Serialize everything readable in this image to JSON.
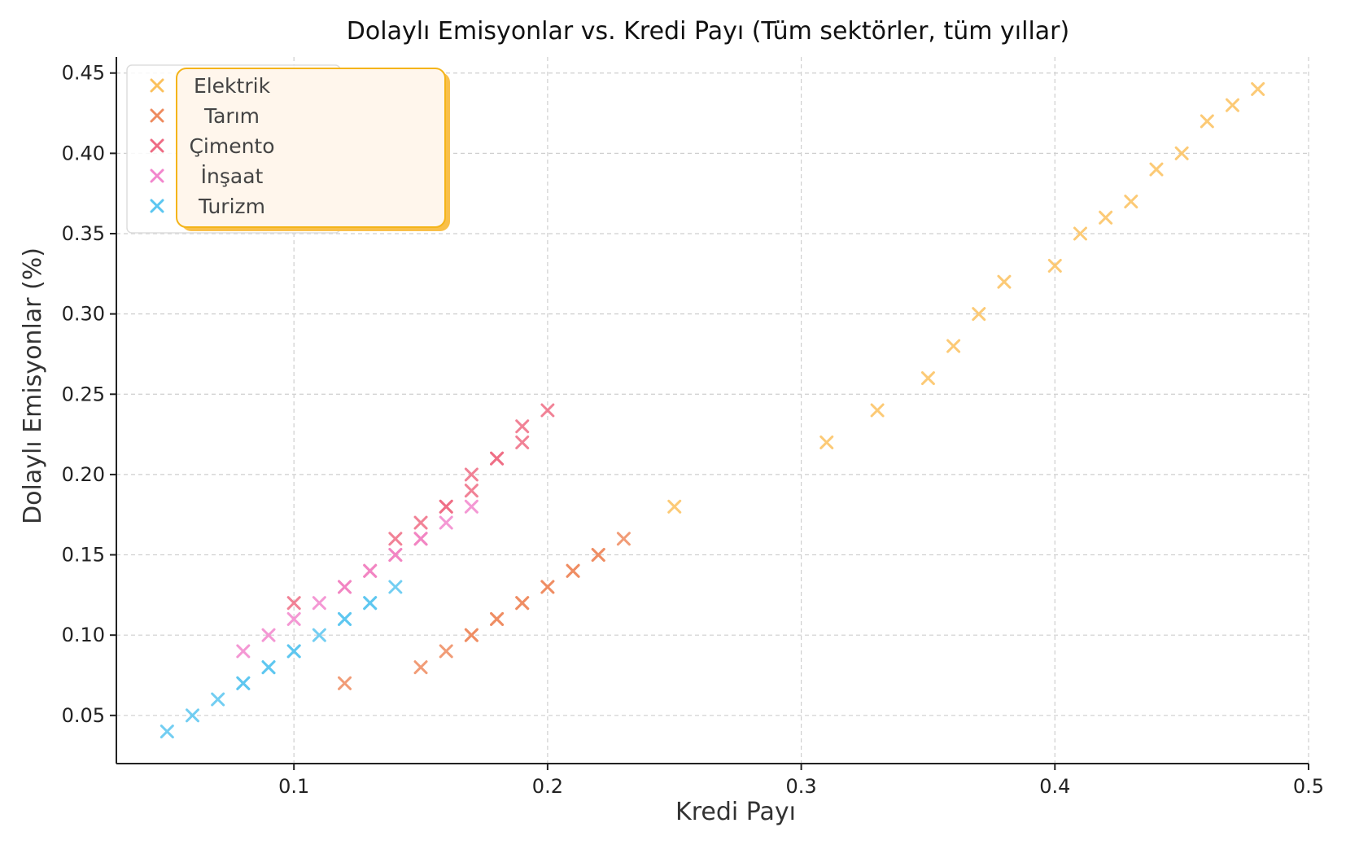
{
  "chart_data": {
    "type": "scatter",
    "title": "Dolaylı Emisyonlar vs. Kredi Payı (Tüm sektörler, tüm yıllar)",
    "xlabel": "Kredi Payı",
    "ylabel": "Dolaylı Emisyonlar (%)",
    "xlim": [
      0.03,
      0.5
    ],
    "ylim": [
      0.02,
      0.46
    ],
    "xticks": [
      0.1,
      0.2,
      0.3,
      0.4,
      0.5
    ],
    "xtick_labels": [
      "0.1",
      "0.2",
      "0.3",
      "0.4",
      "0.5"
    ],
    "yticks": [
      0.05,
      0.1,
      0.15,
      0.2,
      0.25,
      0.3,
      0.35,
      0.4,
      0.45
    ],
    "ytick_labels": [
      "0.05",
      "0.10",
      "0.15",
      "0.20",
      "0.25",
      "0.30",
      "0.35",
      "0.40",
      "0.45"
    ],
    "grid": true,
    "legend_position": "top-left",
    "marker": "x",
    "series": [
      {
        "name": "Elektrik",
        "color": "#fbc15e",
        "x": [
          0.25,
          0.31,
          0.33,
          0.35,
          0.36,
          0.37,
          0.38,
          0.4,
          0.41,
          0.42,
          0.43,
          0.44,
          0.45,
          0.46,
          0.47,
          0.48
        ],
        "y": [
          0.18,
          0.22,
          0.24,
          0.26,
          0.28,
          0.3,
          0.32,
          0.33,
          0.35,
          0.36,
          0.37,
          0.39,
          0.4,
          0.42,
          0.43,
          0.44
        ]
      },
      {
        "name": "Tarım",
        "color": "#ee8b5f",
        "x": [
          0.12,
          0.15,
          0.16,
          0.17,
          0.17,
          0.18,
          0.18,
          0.19,
          0.19,
          0.2,
          0.2,
          0.21,
          0.21,
          0.22,
          0.22,
          0.23
        ],
        "y": [
          0.07,
          0.08,
          0.09,
          0.1,
          0.1,
          0.11,
          0.11,
          0.12,
          0.12,
          0.13,
          0.13,
          0.14,
          0.14,
          0.15,
          0.15,
          0.16
        ]
      },
      {
        "name": "Çimento",
        "color": "#ee6c84",
        "x": [
          0.1,
          0.12,
          0.13,
          0.14,
          0.14,
          0.15,
          0.15,
          0.16,
          0.16,
          0.17,
          0.17,
          0.18,
          0.18,
          0.19,
          0.19,
          0.2
        ],
        "y": [
          0.12,
          0.13,
          0.14,
          0.15,
          0.16,
          0.16,
          0.17,
          0.18,
          0.18,
          0.19,
          0.2,
          0.21,
          0.21,
          0.22,
          0.23,
          0.24
        ]
      },
      {
        "name": "İnşaat",
        "color": "#f286cd",
        "x": [
          0.08,
          0.09,
          0.1,
          0.11,
          0.12,
          0.13,
          0.14,
          0.15,
          0.16,
          0.17
        ],
        "y": [
          0.09,
          0.1,
          0.11,
          0.12,
          0.13,
          0.14,
          0.15,
          0.16,
          0.17,
          0.18
        ]
      },
      {
        "name": "Turizm",
        "color": "#5bc6f0",
        "x": [
          0.05,
          0.06,
          0.07,
          0.08,
          0.08,
          0.09,
          0.09,
          0.1,
          0.1,
          0.11,
          0.12,
          0.12,
          0.13,
          0.13,
          0.14
        ],
        "y": [
          0.04,
          0.05,
          0.06,
          0.07,
          0.07,
          0.08,
          0.08,
          0.09,
          0.09,
          0.1,
          0.11,
          0.11,
          0.12,
          0.12,
          0.13
        ]
      }
    ]
  },
  "legend": {
    "items": [
      "Elektrik",
      "Tarım",
      "Çimento",
      "İnşaat",
      "Turizm"
    ]
  }
}
